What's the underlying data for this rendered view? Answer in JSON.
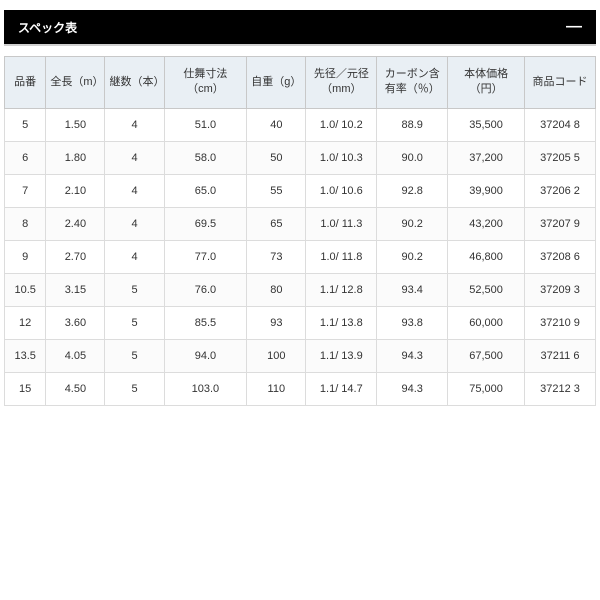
{
  "panel": {
    "title": "スペック表",
    "collapse_label": "—"
  },
  "table": {
    "type": "table",
    "header_bg": "#e9eff4",
    "border_color": "#c8c8c8",
    "cell_border_color": "#dcdcdc",
    "font_size": 11,
    "columns": [
      {
        "label": "品番",
        "width": "7%"
      },
      {
        "label": "全長（m）",
        "width": "10%"
      },
      {
        "label": "継数（本）",
        "width": "10%"
      },
      {
        "label": "仕舞寸法（cm）",
        "width": "14%"
      },
      {
        "label": "自重（g）",
        "width": "10%"
      },
      {
        "label": "先径／元径（mm）",
        "width": "12%"
      },
      {
        "label": "カーボン含有率（％）",
        "width": "12%"
      },
      {
        "label": "本体価格（円）",
        "width": "13%"
      },
      {
        "label": "商品コード",
        "width": "12%"
      }
    ],
    "rows": [
      [
        "5",
        "1.50",
        "4",
        "51.0",
        "40",
        "1.0/ 10.2",
        "88.9",
        "35,500",
        "37204 8"
      ],
      [
        "6",
        "1.80",
        "4",
        "58.0",
        "50",
        "1.0/ 10.3",
        "90.0",
        "37,200",
        "37205 5"
      ],
      [
        "7",
        "2.10",
        "4",
        "65.0",
        "55",
        "1.0/ 10.6",
        "92.8",
        "39,900",
        "37206 2"
      ],
      [
        "8",
        "2.40",
        "4",
        "69.5",
        "65",
        "1.0/ 11.3",
        "90.2",
        "43,200",
        "37207 9"
      ],
      [
        "9",
        "2.70",
        "4",
        "77.0",
        "73",
        "1.0/ 11.8",
        "90.2",
        "46,800",
        "37208 6"
      ],
      [
        "10.5",
        "3.15",
        "5",
        "76.0",
        "80",
        "1.1/ 12.8",
        "93.4",
        "52,500",
        "37209 3"
      ],
      [
        "12",
        "3.60",
        "5",
        "85.5",
        "93",
        "1.1/ 13.8",
        "93.8",
        "60,000",
        "37210 9"
      ],
      [
        "13.5",
        "4.05",
        "5",
        "94.0",
        "100",
        "1.1/ 13.9",
        "94.3",
        "67,500",
        "37211 6"
      ],
      [
        "15",
        "4.50",
        "5",
        "103.0",
        "110",
        "1.1/ 14.7",
        "94.3",
        "75,000",
        "37212 3"
      ]
    ]
  }
}
